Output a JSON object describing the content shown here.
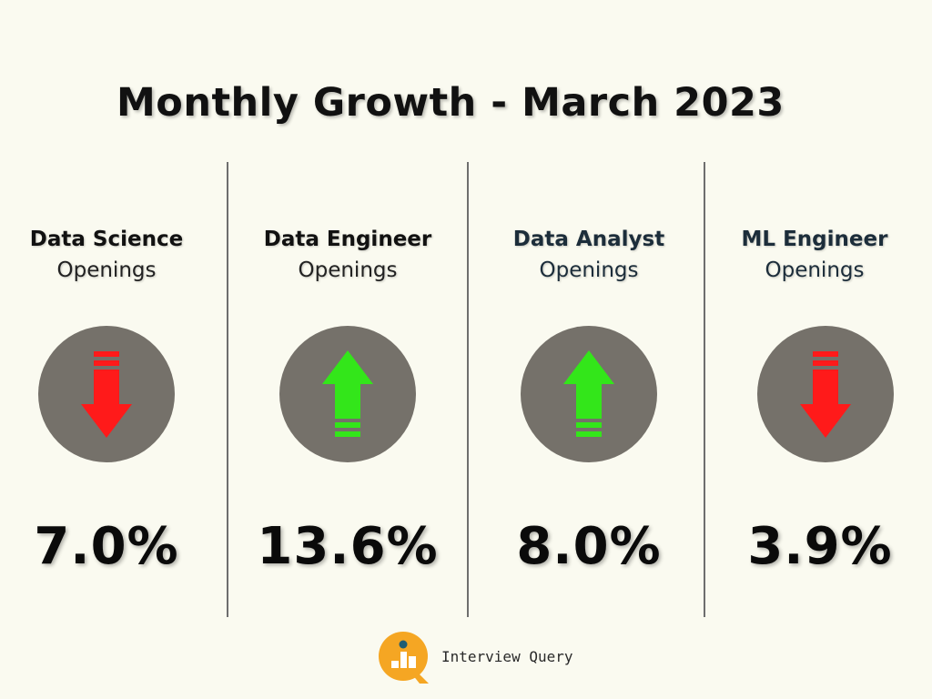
{
  "title": "Monthly Growth - March 2023",
  "columns": [
    {
      "name": "Data Science",
      "sub": "Openings",
      "direction": "down",
      "color": "#ff1a1a",
      "value": "7.0%"
    },
    {
      "name": "Data Engineer",
      "sub": "Openings",
      "direction": "up",
      "color": "#33e61a",
      "value": "13.6%"
    },
    {
      "name": "Data Analyst",
      "sub": "Openings",
      "direction": "up",
      "color": "#33e61a",
      "value": "8.0%"
    },
    {
      "name": "ML Engineer",
      "sub": "Openings",
      "direction": "down",
      "color": "#ff1a1a",
      "value": "3.9%"
    }
  ],
  "brand": {
    "name": "Interview Query",
    "logo_icon": "magnifier-chart-icon",
    "accent": "#f5a623"
  }
}
